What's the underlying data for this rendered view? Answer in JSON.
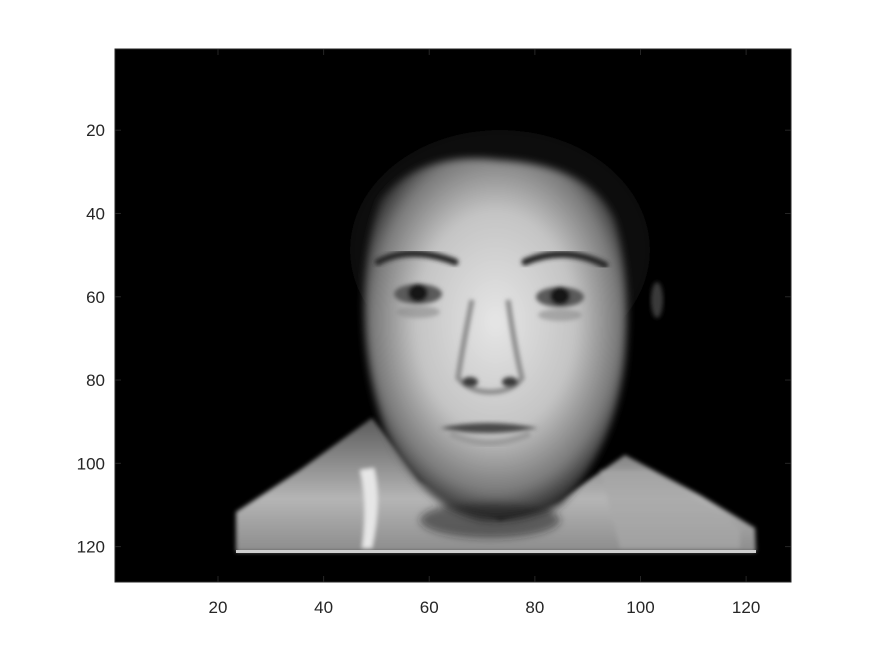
{
  "figure": {
    "colormap": "gray",
    "background_color": "#ffffff",
    "axes_color": "#262626",
    "image_fill_color": "#000000"
  },
  "chart_data": {
    "type": "heatmap",
    "description_kind": "grayscale image display",
    "xlim": [
      0.5,
      128.5
    ],
    "ylim": [
      0.5,
      128.5
    ],
    "y_direction": "reverse",
    "x_ticks": [
      20,
      40,
      60,
      80,
      100,
      120
    ],
    "y_ticks": [
      20,
      40,
      60,
      80,
      100,
      120
    ],
    "x_tick_labels": [
      "20",
      "40",
      "60",
      "80",
      "100",
      "120"
    ],
    "y_tick_labels": [
      "20",
      "40",
      "60",
      "80",
      "100",
      "120"
    ],
    "title": "",
    "xlabel": "",
    "ylabel": ""
  }
}
